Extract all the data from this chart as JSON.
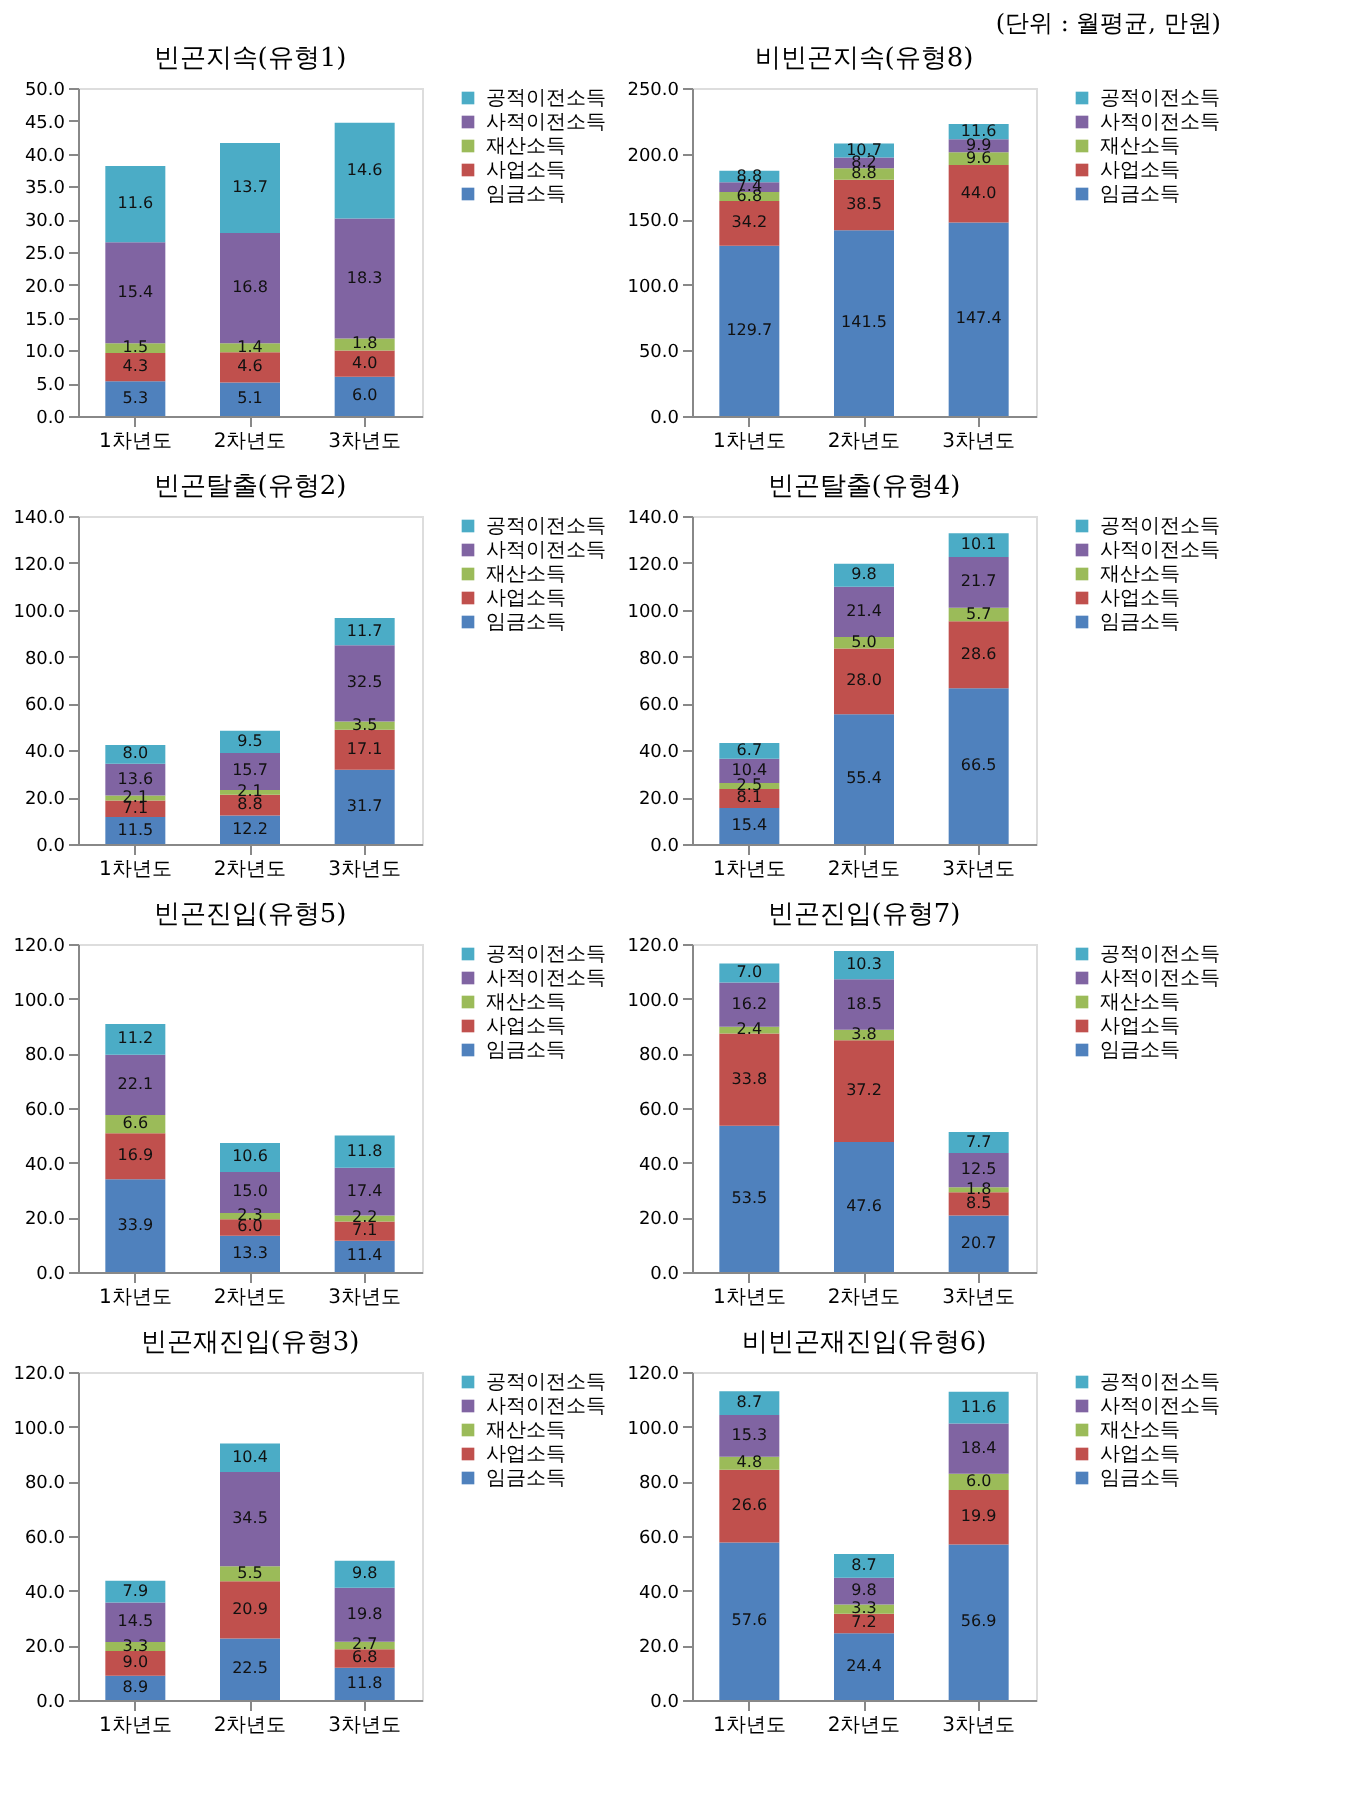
{
  "chart_data": [
    {
      "type": "bar",
      "title": "빈곤지속(유형1)",
      "annotations": [
        "(단위 : 월평균, 만원)"
      ],
      "categories": [
        "1차년도",
        "2차년도",
        "3차년도"
      ],
      "stacked": true,
      "legend": "right",
      "grid": false,
      "ylim": [
        0,
        50
      ],
      "yticks": [
        {
          "value": 0,
          "label": "0.0"
        },
        {
          "value": 5,
          "label": "5.0"
        },
        {
          "value": 10,
          "label": "10.0"
        },
        {
          "value": 15,
          "label": "15.0"
        },
        {
          "value": 20,
          "label": "20.0"
        },
        {
          "value": 25,
          "label": "25.0"
        },
        {
          "value": 30,
          "label": "30.0"
        },
        {
          "value": 35,
          "label": "35.0"
        },
        {
          "value": 40,
          "label": "40.0"
        },
        {
          "value": 45,
          "label": "45.0"
        },
        {
          "value": 50,
          "label": "50.0"
        }
      ],
      "series": [
        {
          "name": "임금소득",
          "color": "#4f81bd",
          "values": [
            5.3,
            5.1,
            6.0
          ],
          "value_labels": [
            "5.3",
            "5.1",
            "6.0"
          ]
        },
        {
          "name": "사업소득",
          "color": "#c0504d",
          "values": [
            4.3,
            4.6,
            4.0
          ],
          "value_labels": [
            "4.3",
            "4.6",
            "4.0"
          ]
        },
        {
          "name": "재산소득",
          "color": "#9bbb59",
          "values": [
            1.5,
            1.4,
            1.8
          ],
          "value_labels": [
            "1.5",
            "1.4",
            "1.8"
          ]
        },
        {
          "name": "사적이전소득",
          "color": "#8064a2",
          "values": [
            15.4,
            16.8,
            18.3
          ],
          "value_labels": [
            "15.4",
            "16.8",
            "18.3"
          ]
        },
        {
          "name": "공적이전소득",
          "color": "#4bacc6",
          "values": [
            11.6,
            13.7,
            14.6
          ],
          "value_labels": [
            "11.6",
            "13.7",
            "14.6"
          ]
        }
      ]
    },
    {
      "type": "bar",
      "title": "비빈곤지속(유형8)",
      "categories": [
        "1차년도",
        "2차년도",
        "3차년도"
      ],
      "stacked": true,
      "legend": "right",
      "grid": false,
      "ylim": [
        0,
        250
      ],
      "yticks": [
        {
          "value": 0,
          "label": "0.0"
        },
        {
          "value": 50,
          "label": "50.0"
        },
        {
          "value": 100,
          "label": "100.0"
        },
        {
          "value": 150,
          "label": "150.0"
        },
        {
          "value": 200,
          "label": "200.0"
        },
        {
          "value": 250,
          "label": "250.0"
        }
      ],
      "series": [
        {
          "name": "임금소득",
          "color": "#4f81bd",
          "values": [
            129.7,
            141.5,
            147.4
          ],
          "value_labels": [
            "129.7",
            "141.5",
            "147.4"
          ]
        },
        {
          "name": "사업소득",
          "color": "#c0504d",
          "values": [
            34.2,
            38.5,
            44.0
          ],
          "value_labels": [
            "34.2",
            "38.5",
            "44.0"
          ]
        },
        {
          "name": "재산소득",
          "color": "#9bbb59",
          "values": [
            6.8,
            8.8,
            9.6
          ],
          "value_labels": [
            "6.8",
            "8.8",
            "9.6"
          ]
        },
        {
          "name": "사적이전소득",
          "color": "#8064a2",
          "values": [
            7.4,
            8.2,
            9.9
          ],
          "value_labels": [
            "7.4",
            "8.2",
            "9.9"
          ]
        },
        {
          "name": "공적이전소득",
          "color": "#4bacc6",
          "values": [
            8.8,
            10.7,
            11.6
          ],
          "value_labels": [
            "8.8",
            "10.7",
            "11.6"
          ]
        }
      ]
    },
    {
      "type": "bar",
      "title": "빈곤탈출(유형2)",
      "categories": [
        "1차년도",
        "2차년도",
        "3차년도"
      ],
      "stacked": true,
      "legend": "right",
      "grid": false,
      "ylim": [
        0,
        140
      ],
      "yticks": [
        {
          "value": 0,
          "label": "0.0"
        },
        {
          "value": 20,
          "label": "20.0"
        },
        {
          "value": 40,
          "label": "40.0"
        },
        {
          "value": 60,
          "label": "60.0"
        },
        {
          "value": 80,
          "label": "80.0"
        },
        {
          "value": 100,
          "label": "100.0"
        },
        {
          "value": 120,
          "label": "120.0"
        },
        {
          "value": 140,
          "label": "140.0"
        }
      ],
      "series": [
        {
          "name": "임금소득",
          "color": "#4f81bd",
          "values": [
            11.5,
            12.2,
            31.7
          ],
          "value_labels": [
            "11.5",
            "12.2",
            "31.7"
          ]
        },
        {
          "name": "사업소득",
          "color": "#c0504d",
          "values": [
            7.1,
            8.8,
            17.1
          ],
          "value_labels": [
            "7.1",
            "8.8",
            "17.1"
          ]
        },
        {
          "name": "재산소득",
          "color": "#9bbb59",
          "values": [
            2.1,
            2.1,
            3.5
          ],
          "value_labels": [
            "2.1",
            "2.1",
            "3.5"
          ]
        },
        {
          "name": "사적이전소득",
          "color": "#8064a2",
          "values": [
            13.6,
            15.7,
            32.5
          ],
          "value_labels": [
            "13.6",
            "15.7",
            "32.5"
          ]
        },
        {
          "name": "공적이전소득",
          "color": "#4bacc6",
          "values": [
            8.0,
            9.5,
            11.7
          ],
          "value_labels": [
            "8.0",
            "9.5",
            "11.7"
          ]
        }
      ]
    },
    {
      "type": "bar",
      "title": "빈곤탈출(유형4)",
      "categories": [
        "1차년도",
        "2차년도",
        "3차년도"
      ],
      "stacked": true,
      "legend": "right",
      "grid": false,
      "ylim": [
        0,
        140
      ],
      "yticks": [
        {
          "value": 0,
          "label": "0.0"
        },
        {
          "value": 20,
          "label": "20.0"
        },
        {
          "value": 40,
          "label": "40.0"
        },
        {
          "value": 60,
          "label": "60.0"
        },
        {
          "value": 80,
          "label": "80.0"
        },
        {
          "value": 100,
          "label": "100.0"
        },
        {
          "value": 120,
          "label": "120.0"
        },
        {
          "value": 140,
          "label": "140.0"
        }
      ],
      "series": [
        {
          "name": "임금소득",
          "color": "#4f81bd",
          "values": [
            15.4,
            55.4,
            66.5
          ],
          "value_labels": [
            "15.4",
            "55.4",
            "66.5"
          ]
        },
        {
          "name": "사업소득",
          "color": "#c0504d",
          "values": [
            8.1,
            28.0,
            28.6
          ],
          "value_labels": [
            "8.1",
            "28.0",
            "28.6"
          ]
        },
        {
          "name": "재산소득",
          "color": "#9bbb59",
          "values": [
            2.5,
            5.0,
            5.7
          ],
          "value_labels": [
            "2.5",
            "5.0",
            "5.7"
          ]
        },
        {
          "name": "사적이전소득",
          "color": "#8064a2",
          "values": [
            10.4,
            21.4,
            21.7
          ],
          "value_labels": [
            "10.4",
            "21.4",
            "21.7"
          ]
        },
        {
          "name": "공적이전소득",
          "color": "#4bacc6",
          "values": [
            6.7,
            9.8,
            10.1
          ],
          "value_labels": [
            "6.7",
            "9.8",
            "10.1"
          ]
        }
      ]
    },
    {
      "type": "bar",
      "title": "빈곤진입(유형5)",
      "categories": [
        "1차년도",
        "2차년도",
        "3차년도"
      ],
      "stacked": true,
      "legend": "right",
      "grid": false,
      "ylim": [
        0,
        120
      ],
      "yticks": [
        {
          "value": 0,
          "label": "0.0"
        },
        {
          "value": 20,
          "label": "20.0"
        },
        {
          "value": 40,
          "label": "40.0"
        },
        {
          "value": 60,
          "label": "60.0"
        },
        {
          "value": 80,
          "label": "80.0"
        },
        {
          "value": 100,
          "label": "100.0"
        },
        {
          "value": 120,
          "label": "120.0"
        }
      ],
      "series": [
        {
          "name": "임금소득",
          "color": "#4f81bd",
          "values": [
            33.9,
            13.3,
            11.4
          ],
          "value_labels": [
            "33.9",
            "13.3",
            "11.4"
          ]
        },
        {
          "name": "사업소득",
          "color": "#c0504d",
          "values": [
            16.9,
            6.0,
            7.1
          ],
          "value_labels": [
            "16.9",
            "6.0",
            "7.1"
          ]
        },
        {
          "name": "재산소득",
          "color": "#9bbb59",
          "values": [
            6.6,
            2.3,
            2.2
          ],
          "value_labels": [
            "6.6",
            "2.3",
            "2.2"
          ]
        },
        {
          "name": "사적이전소득",
          "color": "#8064a2",
          "values": [
            22.1,
            15.0,
            17.4
          ],
          "value_labels": [
            "22.1",
            "15.0",
            "17.4"
          ]
        },
        {
          "name": "공적이전소득",
          "color": "#4bacc6",
          "values": [
            11.2,
            10.6,
            11.8
          ],
          "value_labels": [
            "11.2",
            "10.6",
            "11.8"
          ]
        }
      ]
    },
    {
      "type": "bar",
      "title": "빈곤진입(유형7)",
      "categories": [
        "1차년도",
        "2차년도",
        "3차년도"
      ],
      "stacked": true,
      "legend": "right",
      "grid": false,
      "ylim": [
        0,
        120
      ],
      "yticks": [
        {
          "value": 0,
          "label": "0.0"
        },
        {
          "value": 20,
          "label": "20.0"
        },
        {
          "value": 40,
          "label": "40.0"
        },
        {
          "value": 60,
          "label": "60.0"
        },
        {
          "value": 80,
          "label": "80.0"
        },
        {
          "value": 100,
          "label": "100.0"
        },
        {
          "value": 120,
          "label": "120.0"
        }
      ],
      "series": [
        {
          "name": "임금소득",
          "color": "#4f81bd",
          "values": [
            53.5,
            47.6,
            20.7
          ],
          "value_labels": [
            "53.5",
            "47.6",
            "20.7"
          ]
        },
        {
          "name": "사업소득",
          "color": "#c0504d",
          "values": [
            33.8,
            37.2,
            8.5
          ],
          "value_labels": [
            "33.8",
            "37.2",
            "8.5"
          ]
        },
        {
          "name": "재산소득",
          "color": "#9bbb59",
          "values": [
            2.4,
            3.8,
            1.8
          ],
          "value_labels": [
            "2.4",
            "3.8",
            "1.8"
          ]
        },
        {
          "name": "사적이전소득",
          "color": "#8064a2",
          "values": [
            16.2,
            18.5,
            12.5
          ],
          "value_labels": [
            "16.2",
            "18.5",
            "12.5"
          ]
        },
        {
          "name": "공적이전소득",
          "color": "#4bacc6",
          "values": [
            7.0,
            10.3,
            7.7
          ],
          "value_labels": [
            "7.0",
            "10.3",
            "7.7"
          ]
        }
      ]
    },
    {
      "type": "bar",
      "title": "빈곤재진입(유형3)",
      "categories": [
        "1차년도",
        "2차년도",
        "3차년도"
      ],
      "stacked": true,
      "legend": "right",
      "grid": false,
      "ylim": [
        0,
        120
      ],
      "yticks": [
        {
          "value": 0,
          "label": "0.0"
        },
        {
          "value": 20,
          "label": "20.0"
        },
        {
          "value": 40,
          "label": "40.0"
        },
        {
          "value": 60,
          "label": "60.0"
        },
        {
          "value": 80,
          "label": "80.0"
        },
        {
          "value": 100,
          "label": "100.0"
        },
        {
          "value": 120,
          "label": "120.0"
        }
      ],
      "series": [
        {
          "name": "임금소득",
          "color": "#4f81bd",
          "values": [
            8.9,
            22.5,
            11.8
          ],
          "value_labels": [
            "8.9",
            "22.5",
            "11.8"
          ]
        },
        {
          "name": "사업소득",
          "color": "#c0504d",
          "values": [
            9.0,
            20.9,
            6.8
          ],
          "value_labels": [
            "9.0",
            "20.9",
            "6.8"
          ]
        },
        {
          "name": "재산소득",
          "color": "#9bbb59",
          "values": [
            3.3,
            5.5,
            2.7
          ],
          "value_labels": [
            "3.3",
            "5.5",
            "2.7"
          ]
        },
        {
          "name": "사적이전소득",
          "color": "#8064a2",
          "values": [
            14.5,
            34.5,
            19.8
          ],
          "value_labels": [
            "14.5",
            "34.5",
            "19.8"
          ]
        },
        {
          "name": "공적이전소득",
          "color": "#4bacc6",
          "values": [
            7.9,
            10.4,
            9.8
          ],
          "value_labels": [
            "7.9",
            "10.4",
            "9.8"
          ]
        }
      ]
    },
    {
      "type": "bar",
      "title": "비빈곤재진입(유형6)",
      "categories": [
        "1차년도",
        "2차년도",
        "3차년도"
      ],
      "stacked": true,
      "legend": "right",
      "grid": false,
      "ylim": [
        0,
        120
      ],
      "yticks": [
        {
          "value": 0,
          "label": "0.0"
        },
        {
          "value": 20,
          "label": "20.0"
        },
        {
          "value": 40,
          "label": "40.0"
        },
        {
          "value": 60,
          "label": "60.0"
        },
        {
          "value": 80,
          "label": "80.0"
        },
        {
          "value": 100,
          "label": "100.0"
        },
        {
          "value": 120,
          "label": "120.0"
        }
      ],
      "series": [
        {
          "name": "임금소득",
          "color": "#4f81bd",
          "values": [
            57.6,
            24.4,
            56.9
          ],
          "value_labels": [
            "57.6",
            "24.4",
            "56.9"
          ]
        },
        {
          "name": "사업소득",
          "color": "#c0504d",
          "values": [
            26.6,
            7.2,
            19.9
          ],
          "value_labels": [
            "26.6",
            "7.2",
            "19.9"
          ]
        },
        {
          "name": "재산소득",
          "color": "#9bbb59",
          "values": [
            4.8,
            3.3,
            6.0
          ],
          "value_labels": [
            "4.8",
            "3.3",
            "6.0"
          ]
        },
        {
          "name": "사적이전소득",
          "color": "#8064a2",
          "values": [
            15.3,
            9.8,
            18.4
          ],
          "value_labels": [
            "15.3",
            "9.8",
            "18.4"
          ]
        },
        {
          "name": "공적이전소득",
          "color": "#4bacc6",
          "values": [
            8.7,
            8.7,
            11.6
          ],
          "value_labels": [
            "8.7",
            "8.7",
            "11.6"
          ]
        }
      ]
    }
  ]
}
